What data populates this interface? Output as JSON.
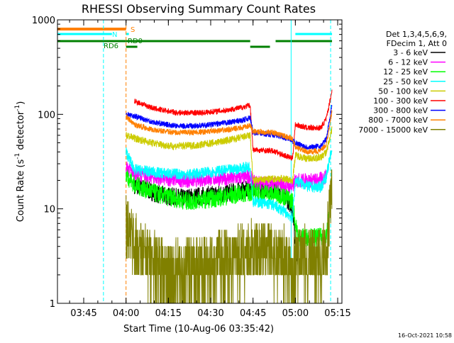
{
  "chart_data": {
    "type": "line",
    "title": "RHESSI Observing Summary Count Rates",
    "xlabel": "Start Time (10-Aug-06 03:35:42)",
    "ylabel_main": "Count Rate (s",
    "ylabel_sup1": "-1",
    "ylabel_mid": " detector",
    "ylabel_sup2": "-1",
    "ylabel_end": ")",
    "y_scale": "log",
    "ylim": [
      1,
      1000
    ],
    "x_range_minutes": [
      "03:35:42",
      "05:16:30"
    ],
    "x_ticks": [
      "03:45",
      "04:00",
      "04:15",
      "04:30",
      "04:45",
      "05:00",
      "05:15"
    ],
    "y_ticks": [
      "1",
      "10",
      "100",
      "1000"
    ],
    "timestamp": "16-Oct-2021 10:58",
    "legend": {
      "header": [
        "Det 1,3,4,5,6,9,",
        "FDecim 1, Att 0"
      ],
      "entries": [
        {
          "label": "3 - 6 keV",
          "color": "#000000"
        },
        {
          "label": "6 - 12 keV",
          "color": "#ff00ff"
        },
        {
          "label": "12 - 25 keV",
          "color": "#00ff00"
        },
        {
          "label": "25 - 50 keV",
          "color": "#00ffff"
        },
        {
          "label": "50 - 100 keV",
          "color": "#cccc00"
        },
        {
          "label": "100 - 300 keV",
          "color": "#ff0000"
        },
        {
          "label": "300 - 800 keV",
          "color": "#0000ff"
        },
        {
          "label": "800 - 7000 keV",
          "color": "#ff8000"
        },
        {
          "label": "7000 - 15000 keV",
          "color": "#808000"
        }
      ]
    },
    "state_bars": [
      {
        "label": "S",
        "color": "#ff8000",
        "level": "top",
        "segments": [
          [
            "03:35:42",
            "04:00:00"
          ]
        ]
      },
      {
        "label": "N",
        "color": "#00ffff",
        "level": "second",
        "segments": [
          [
            "03:35:42",
            "03:55:00"
          ],
          [
            "04:00:00",
            "04:01:00"
          ],
          [
            "05:00:00",
            "05:13:00"
          ]
        ]
      },
      {
        "label": "RD6",
        "color": "#008000",
        "level": "third",
        "segments": [
          [
            "03:35:42",
            "04:00:00"
          ]
        ]
      },
      {
        "label": "RD0",
        "color": "#008000",
        "level": "third",
        "segments": [
          [
            "04:00:00",
            "04:44:00"
          ],
          [
            "04:53:00",
            "05:13:00"
          ]
        ]
      },
      {
        "label": "",
        "color": "#008000",
        "level": "fourth",
        "segments": [
          [
            "04:00:00",
            "04:04:00"
          ],
          [
            "04:44:00",
            "04:51:00"
          ]
        ]
      }
    ],
    "vlines": [
      {
        "time": "03:35:42",
        "color": "#00ffff",
        "style": "solid"
      },
      {
        "time": "03:52:00",
        "color": "#00ffff",
        "style": "dashed"
      },
      {
        "time": "04:00:00",
        "color": "#ff8000",
        "style": "dashed"
      },
      {
        "time": "04:58:30",
        "color": "#00ffff",
        "style": "solid"
      },
      {
        "time": "05:12:30",
        "color": "#00ffff",
        "style": "dashed"
      }
    ],
    "series": [
      {
        "name": "3 - 6 keV",
        "color": "#000000",
        "noise": 0.1,
        "points": [
          [
            "04:03",
            18
          ],
          [
            "04:12",
            14
          ],
          [
            "04:20",
            13
          ],
          [
            "04:30",
            14
          ],
          [
            "04:38",
            15
          ],
          [
            "04:44",
            16
          ],
          [
            "04:45",
            17
          ],
          [
            "04:55",
            16
          ],
          [
            "04:57",
            13
          ],
          [
            "04:59",
            10
          ],
          [
            "05:00",
            4
          ],
          [
            "05:01",
            3
          ]
        ]
      },
      {
        "name": "6 - 12 keV",
        "color": "#ff00ff",
        "noise": 0.08,
        "points": [
          [
            "04:00",
            27
          ],
          [
            "04:03",
            24
          ],
          [
            "04:12",
            21
          ],
          [
            "04:22",
            20
          ],
          [
            "04:32",
            21
          ],
          [
            "04:38",
            21
          ],
          [
            "04:44",
            22
          ],
          [
            "04:45",
            19
          ],
          [
            "04:55",
            18
          ],
          [
            "04:59",
            17
          ],
          [
            "05:00",
            20
          ],
          [
            "05:08",
            20
          ],
          [
            "05:11",
            22
          ]
        ]
      },
      {
        "name": "12 - 25 keV",
        "color": "#00ff00",
        "noise": 0.1,
        "points": [
          [
            "04:00",
            23
          ],
          [
            "04:03",
            18
          ],
          [
            "04:12",
            14
          ],
          [
            "04:22",
            12
          ],
          [
            "04:32",
            13
          ],
          [
            "04:38",
            14
          ],
          [
            "04:44",
            15
          ],
          [
            "04:45",
            15
          ],
          [
            "04:55",
            14
          ],
          [
            "04:59",
            12
          ],
          [
            "05:00",
            7
          ],
          [
            "05:01",
            5
          ],
          [
            "05:11",
            5
          ],
          [
            "05:12",
            9
          ]
        ]
      },
      {
        "name": "25 - 50 keV",
        "color": "#00ffff",
        "noise": 0.06,
        "points": [
          [
            "04:00",
            40
          ],
          [
            "04:03",
            26
          ],
          [
            "04:12",
            24
          ],
          [
            "04:22",
            23
          ],
          [
            "04:32",
            25
          ],
          [
            "04:38",
            26
          ],
          [
            "04:44",
            28
          ],
          [
            "04:45",
            12
          ],
          [
            "04:52",
            11
          ],
          [
            "04:57",
            9
          ],
          [
            "04:59",
            8
          ],
          [
            "05:00",
            20
          ],
          [
            "05:05",
            17
          ],
          [
            "05:09",
            17
          ],
          [
            "05:11",
            22
          ],
          [
            "05:13",
            45
          ]
        ]
      },
      {
        "name": "50 - 100 keV",
        "color": "#cccc00",
        "noise": 0.04,
        "points": [
          [
            "04:00",
            60
          ],
          [
            "04:03",
            56
          ],
          [
            "04:09",
            50
          ],
          [
            "04:16",
            46
          ],
          [
            "04:25",
            47
          ],
          [
            "04:33",
            51
          ],
          [
            "04:40",
            56
          ],
          [
            "04:44",
            60
          ],
          [
            "04:45",
            20
          ],
          [
            "04:55",
            21
          ],
          [
            "04:59",
            20
          ],
          [
            "05:00",
            37
          ],
          [
            "05:04",
            34
          ],
          [
            "05:09",
            35
          ],
          [
            "05:11",
            40
          ],
          [
            "05:13",
            70
          ]
        ]
      },
      {
        "name": "100 - 300 keV",
        "color": "#ff0000",
        "noise": 0.03,
        "points": [
          [
            "04:03",
            138
          ],
          [
            "04:10",
            115
          ],
          [
            "04:18",
            104
          ],
          [
            "04:27",
            104
          ],
          [
            "04:35",
            110
          ],
          [
            "04:41",
            118
          ],
          [
            "04:44",
            125
          ],
          [
            "04:45",
            42
          ],
          [
            "04:52",
            41
          ],
          [
            "04:57",
            36
          ],
          [
            "04:59",
            34
          ],
          [
            "05:00",
            78
          ],
          [
            "05:04",
            72
          ],
          [
            "05:09",
            72
          ],
          [
            "05:11",
            90
          ],
          [
            "05:13",
            180
          ]
        ]
      },
      {
        "name": "300 - 800 keV",
        "color": "#0000ff",
        "noise": 0.03,
        "points": [
          [
            "04:00",
            100
          ],
          [
            "04:03",
            96
          ],
          [
            "04:10",
            82
          ],
          [
            "04:18",
            75
          ],
          [
            "04:27",
            76
          ],
          [
            "04:35",
            81
          ],
          [
            "04:41",
            86
          ],
          [
            "04:44",
            92
          ],
          [
            "04:45",
            64
          ],
          [
            "04:52",
            61
          ],
          [
            "04:57",
            56
          ],
          [
            "04:59",
            52
          ],
          [
            "05:00",
            50
          ],
          [
            "05:04",
            45
          ],
          [
            "05:09",
            46
          ],
          [
            "05:11",
            55
          ],
          [
            "05:13",
            130
          ]
        ]
      },
      {
        "name": "800 - 7000 keV",
        "color": "#ff8000",
        "noise": 0.03,
        "points": [
          [
            "04:00",
            95
          ],
          [
            "04:03",
            78
          ],
          [
            "04:10",
            68
          ],
          [
            "04:18",
            64
          ],
          [
            "04:27",
            65
          ],
          [
            "04:35",
            68
          ],
          [
            "04:41",
            72
          ],
          [
            "04:44",
            76
          ],
          [
            "04:45",
            66
          ],
          [
            "04:52",
            64
          ],
          [
            "04:57",
            58
          ],
          [
            "04:59",
            55
          ],
          [
            "05:00",
            45
          ],
          [
            "05:04",
            40
          ],
          [
            "05:09",
            41
          ],
          [
            "05:11",
            48
          ],
          [
            "05:13",
            110
          ]
        ]
      },
      {
        "name": "7000 - 15000 keV",
        "color": "#808000",
        "noise": 0.35,
        "points": [
          [
            "04:00",
            6.5
          ],
          [
            "04:03",
            4
          ],
          [
            "04:08",
            3
          ],
          [
            "04:15",
            2
          ],
          [
            "04:24",
            2.2
          ],
          [
            "04:33",
            2.8
          ],
          [
            "04:42",
            3.2
          ],
          [
            "04:44",
            3.5
          ],
          [
            "04:50",
            3.3
          ],
          [
            "04:57",
            3
          ],
          [
            "04:59",
            2
          ],
          [
            "05:00",
            3
          ],
          [
            "05:09",
            2.8
          ],
          [
            "05:11",
            4
          ],
          [
            "05:13",
            14
          ]
        ]
      }
    ]
  }
}
